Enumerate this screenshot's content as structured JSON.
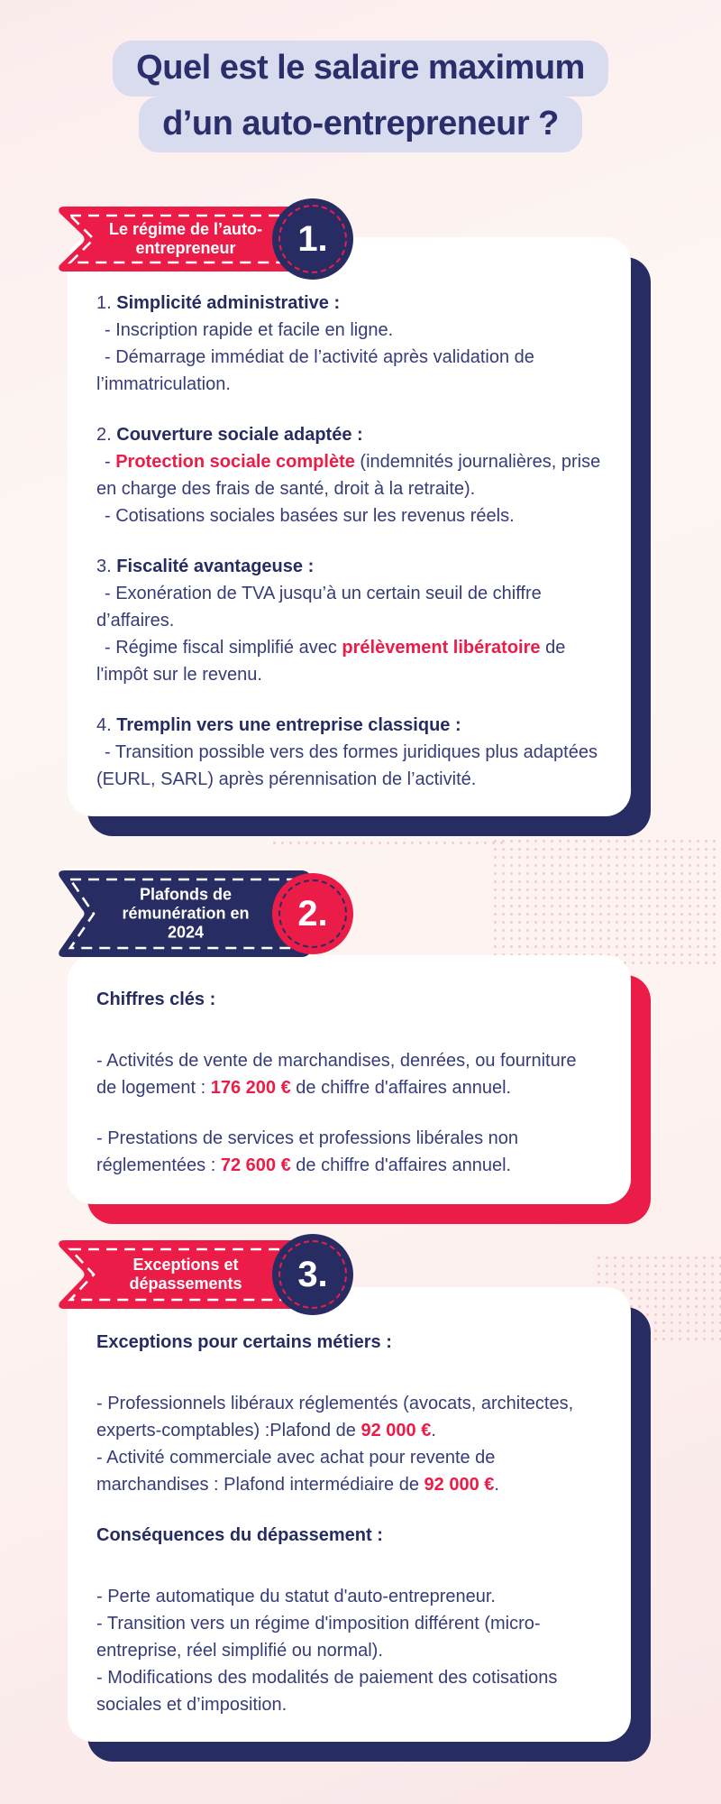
{
  "page": {
    "title_lines": [
      "Quel est le salaire maximum",
      "d’un auto-entrepreneur ?"
    ]
  },
  "colors": {
    "red_accent": "#EC1C48",
    "navy": "#272D63",
    "lavender_title_bg": "#D8DCEE",
    "body_text": "#363C78",
    "card_bg": "#FFFFFF",
    "page_bg_pink": "#FAE9EA"
  },
  "sections": [
    {
      "ribbon": {
        "label_lines": [
          "Le régime de l’auto-",
          "entrepreneur"
        ],
        "number": "1."
      },
      "card": {
        "paragraphs": [
          {
            "runs": [
              {
                "t": "1. "
              },
              {
                "t": "Simplicité administrative :",
                "s": "b"
              }
            ]
          },
          {
            "runs": [
              {
                "t": "- Inscription rapide et facile en ligne."
              }
            ]
          },
          {
            "runs": [
              {
                "t": "- Démarrage immédiat de l’activité après validation de l’immatriculation."
              }
            ]
          },
          {
            "runs": [
              {
                "t": "2. "
              },
              {
                "t": "Couverture sociale adaptée :",
                "s": "b"
              }
            ]
          },
          {
            "runs": [
              {
                "t": "- "
              },
              {
                "t": "Protection sociale complète",
                "s": "rb"
              },
              {
                "t": " (indemnités journalières, prise en charge des frais de santé, droit à la retraite)."
              }
            ]
          },
          {
            "runs": [
              {
                "t": "- Cotisations sociales basées sur les revenus réels."
              }
            ]
          },
          {
            "runs": [
              {
                "t": "3. "
              },
              {
                "t": "Fiscalité avantageuse :",
                "s": "b"
              }
            ]
          },
          {
            "runs": [
              {
                "t": "- Exonération de TVA jusqu’à un certain seuil de chiffre d’affaires."
              }
            ]
          },
          {
            "runs": [
              {
                "t": "- Régime fiscal simplifié avec "
              },
              {
                "t": "prélèvement libératoire",
                "s": "rb"
              },
              {
                "t": " de l'impôt sur le revenu."
              }
            ]
          },
          {
            "runs": [
              {
                "t": "4. "
              },
              {
                "t": "Tremplin vers une entreprise classique :",
                "s": "b"
              }
            ]
          },
          {
            "runs": [
              {
                "t": "- Transition possible vers des formes juridiques plus adaptées (EURL, SARL) après pérennisation de l’activité."
              }
            ]
          }
        ]
      }
    },
    {
      "ribbon": {
        "label_lines": [
          "Plafonds de",
          "rémunération en",
          "2024"
        ],
        "number": "2."
      },
      "card": {
        "paragraphs": [
          {
            "runs": [
              {
                "t": "Chiffres clés :",
                "s": "b"
              }
            ]
          },
          {
            "runs": [
              {
                "t": "- Activités de vente de marchandises, denrées, ou fourniture de logement : "
              },
              {
                "t": "176 200 €",
                "s": "rb"
              },
              {
                "t": " de chiffre d'affaires annuel."
              }
            ]
          },
          {
            "runs": [
              {
                "t": "- Prestations de services et professions libérales non réglementées : "
              },
              {
                "t": "72 600 €",
                "s": "rb"
              },
              {
                "t": " de chiffre d'affaires annuel."
              }
            ]
          }
        ]
      }
    },
    {
      "ribbon": {
        "label_lines": [
          "Exceptions et",
          "dépassements"
        ],
        "number": "3."
      },
      "card": {
        "paragraphs": [
          {
            "runs": [
              {
                "t": "Exceptions pour certains métiers :",
                "s": "b"
              }
            ]
          },
          {
            "runs": [
              {
                "t": "- Professionnels libéraux réglementés (avocats, architectes, experts-comptables) :Plafond de "
              },
              {
                "t": "92 000 €",
                "s": "rb"
              },
              {
                "t": "."
              }
            ]
          },
          {
            "runs": [
              {
                "t": "- Activité commerciale avec achat pour revente de marchandises : Plafond intermédiaire de "
              },
              {
                "t": "92 000 €",
                "s": "rb"
              },
              {
                "t": "."
              }
            ]
          },
          {
            "runs": [
              {
                "t": "Conséquences du dépassement :",
                "s": "b"
              }
            ]
          },
          {
            "runs": [
              {
                "t": "- Perte automatique du statut d'auto-entrepreneur."
              }
            ]
          },
          {
            "runs": [
              {
                "t": "- Transition vers un régime d'imposition différent (micro-entreprise, réel simplifié ou normal)."
              }
            ]
          },
          {
            "runs": [
              {
                "t": "- Modifications des modalités de paiement des cotisations sociales et d’imposition."
              }
            ]
          }
        ]
      }
    }
  ]
}
